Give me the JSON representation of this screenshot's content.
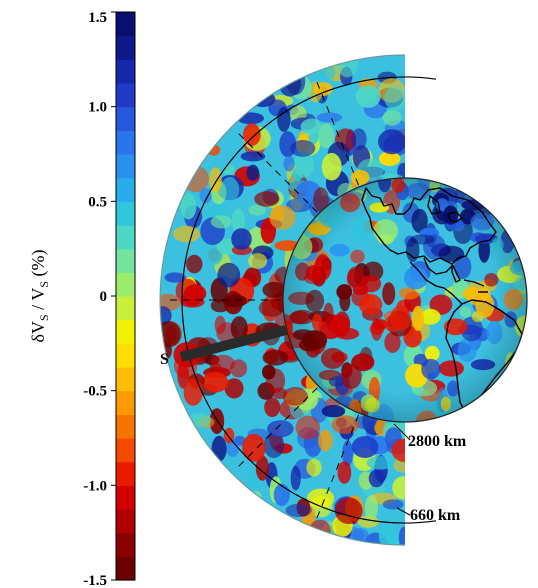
{
  "colorbar": {
    "label_main": "δV",
    "label_sub": "S",
    "label_sep": " / V",
    "label_sub2": "S",
    "label_unit": "  (%)",
    "min": -1.5,
    "max": 1.5,
    "ticks": [
      "1.5",
      "1.0",
      "0.5",
      "0",
      "-0.5",
      "-1.0",
      "-1.5"
    ],
    "tick_values": [
      1.5,
      1.0,
      0.5,
      0,
      -0.5,
      -1.0,
      -1.5
    ],
    "colors": [
      "#6a0000",
      "#8a0000",
      "#b00000",
      "#d20000",
      "#ea1a00",
      "#f44a00",
      "#f87400",
      "#fb9a00",
      "#fdbd00",
      "#fede00",
      "#f2f200",
      "#c8f03a",
      "#9cec6c",
      "#72e49e",
      "#4cd8c4",
      "#30c6dc",
      "#28acec",
      "#2a90ee",
      "#2a74ec",
      "#2658dc",
      "#1e3cc8",
      "#1628aa",
      "#0e1a8a",
      "#0a0e6e"
    ]
  },
  "annotations": {
    "slab_label": "S",
    "cmb_label": "2800 km",
    "transition_label": "660 km"
  },
  "palette": {
    "ocean_background": "#3cc0e0",
    "slow_anomaly": "#d81a00",
    "fast_anomaly": "#1e48d8",
    "coastline": "#000000"
  }
}
